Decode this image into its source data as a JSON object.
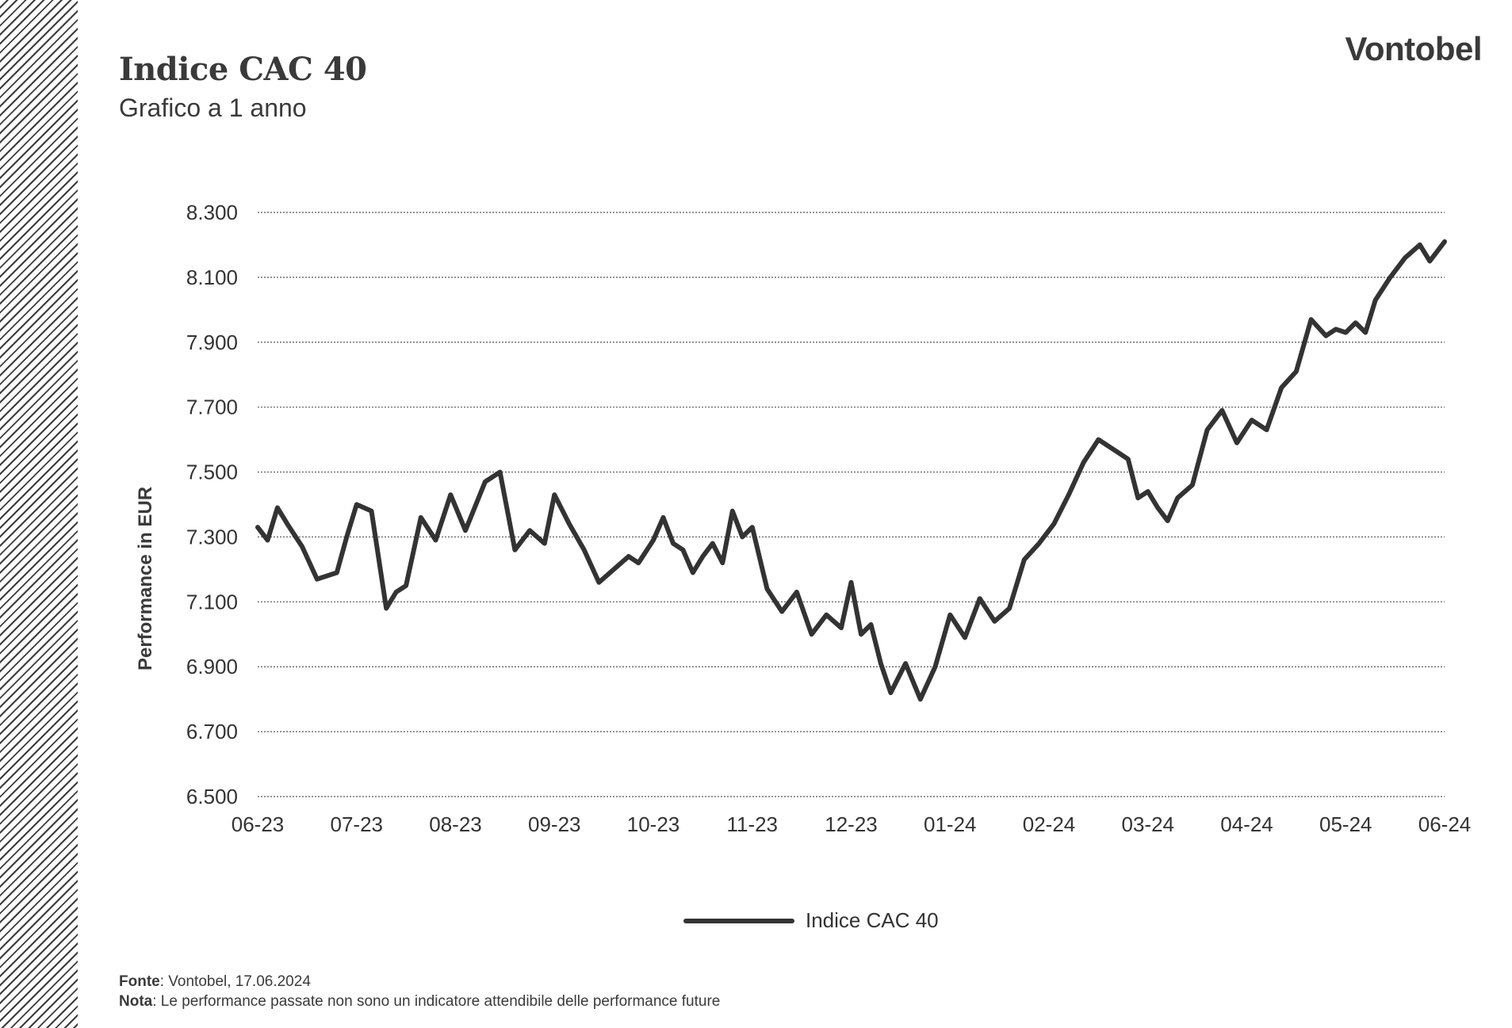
{
  "header": {
    "title": "Indice CAC 40",
    "subtitle": "Grafico a 1 anno",
    "brand": "Vontobel"
  },
  "footer": {
    "source_label": "Fonte",
    "source_text": ": Vontobel, 17.06.2024",
    "note_label": "Nota",
    "note_text": ": Le performance passate non sono un indicatore attendibile delle performance future"
  },
  "colors": {
    "line": "#333333",
    "text": "#3a3a3a",
    "grid": "#555555"
  },
  "chart_data": {
    "type": "line",
    "title": "Indice CAC 40",
    "subtitle": "Grafico a 1 anno",
    "ylabel": "Performance in EUR",
    "xlabel": "",
    "ylim": [
      6500,
      8300
    ],
    "yticks": [
      6500,
      6700,
      6900,
      7100,
      7300,
      7500,
      7700,
      7900,
      8100,
      8300
    ],
    "ytick_labels": [
      "6.500",
      "6.700",
      "6.900",
      "7.100",
      "7.300",
      "7.500",
      "7.700",
      "7.900",
      "8.100",
      "8.300"
    ],
    "xticks": [
      "06-23",
      "07-23",
      "08-23",
      "09-23",
      "10-23",
      "11-23",
      "12-23",
      "01-24",
      "02-24",
      "03-24",
      "04-24",
      "05-24",
      "06-24"
    ],
    "grid": "horizontal dotted",
    "legend_position": "bottom-center",
    "series": [
      {
        "name": "Indice CAC 40",
        "x": [
          0.0,
          0.1,
          0.2,
          0.3,
          0.45,
          0.6,
          0.8,
          0.9,
          1.0,
          1.15,
          1.3,
          1.4,
          1.5,
          1.65,
          1.8,
          1.95,
          2.1,
          2.3,
          2.45,
          2.6,
          2.75,
          2.9,
          3.0,
          3.15,
          3.3,
          3.45,
          3.6,
          3.75,
          3.85,
          4.0,
          4.1,
          4.2,
          4.3,
          4.4,
          4.5,
          4.6,
          4.7,
          4.8,
          4.9,
          5.0,
          5.15,
          5.3,
          5.45,
          5.6,
          5.75,
          5.9,
          6.0,
          6.1,
          6.2,
          6.3,
          6.4,
          6.55,
          6.7,
          6.85,
          7.0,
          7.15,
          7.3,
          7.45,
          7.6,
          7.75,
          7.9,
          8.05,
          8.2,
          8.35,
          8.5,
          8.65,
          8.8,
          8.9,
          9.0,
          9.1,
          9.2,
          9.3,
          9.45,
          9.6,
          9.75,
          9.9,
          10.05,
          10.2,
          10.35,
          10.5,
          10.65,
          10.8,
          10.9,
          11.0,
          11.1,
          11.2,
          11.3,
          11.45,
          11.6,
          11.75,
          11.85,
          12.0
        ],
        "y": [
          7330,
          7290,
          7390,
          7340,
          7270,
          7170,
          7190,
          7300,
          7400,
          7380,
          7080,
          7130,
          7150,
          7360,
          7290,
          7430,
          7320,
          7470,
          7500,
          7260,
          7320,
          7280,
          7430,
          7340,
          7260,
          7160,
          7200,
          7240,
          7220,
          7290,
          7360,
          7280,
          7260,
          7190,
          7240,
          7280,
          7220,
          7380,
          7300,
          7330,
          7140,
          7070,
          7130,
          7000,
          7060,
          7020,
          7160,
          7000,
          7030,
          6910,
          6820,
          6910,
          6800,
          6900,
          7060,
          6990,
          7110,
          7040,
          7080,
          7230,
          7280,
          7340,
          7430,
          7530,
          7600,
          7570,
          7540,
          7420,
          7440,
          7390,
          7350,
          7420,
          7460,
          7630,
          7690,
          7590,
          7660,
          7630,
          7760,
          7810,
          7970,
          7920,
          7940,
          7930,
          7960,
          7930,
          8030,
          8100,
          8160,
          8200,
          8150,
          8210
        ]
      }
    ]
  }
}
